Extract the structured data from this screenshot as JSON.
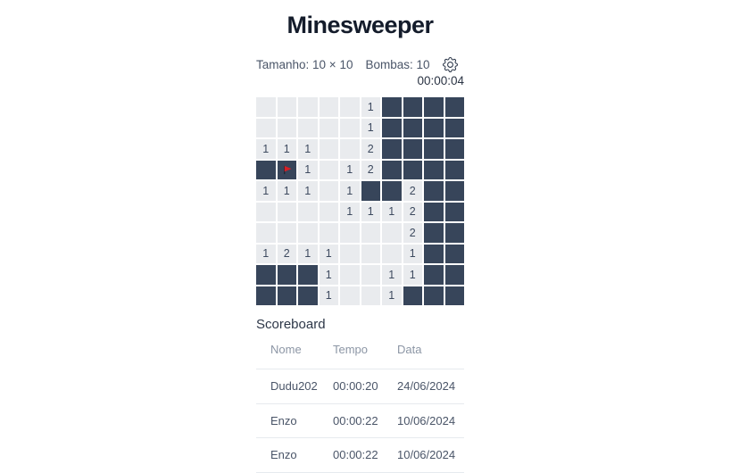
{
  "page": {
    "title": "Minesweeper"
  },
  "settings": {
    "size_label": "Tamanho: 10 × 10",
    "bombs_label": "Bombas: 10",
    "timer": "00:00:04"
  },
  "icons": {
    "settings": "gear-icon",
    "flag": "flag-icon"
  },
  "board": {
    "rows": 10,
    "cols": 10,
    "cell_legend": {
      "#": "hidden",
      "F": "hidden-with-flag",
      "": "revealed-empty"
    },
    "cells": [
      [
        "",
        "",
        "",
        "",
        "",
        "1",
        "#",
        "#",
        "#",
        "#"
      ],
      [
        "",
        "",
        "",
        "",
        "",
        "1",
        "#",
        "#",
        "#",
        "#"
      ],
      [
        "1",
        "1",
        "1",
        "",
        "",
        "2",
        "#",
        "#",
        "#",
        "#"
      ],
      [
        "#",
        "F",
        "1",
        "",
        "1",
        "2",
        "#",
        "#",
        "#",
        "#"
      ],
      [
        "1",
        "1",
        "1",
        "",
        "1",
        "#",
        "#",
        "2",
        "#",
        "#"
      ],
      [
        "",
        "",
        "",
        "",
        "1",
        "1",
        "1",
        "2",
        "#",
        "#"
      ],
      [
        "",
        "",
        "",
        "",
        "",
        "",
        "",
        "2",
        "#",
        "#"
      ],
      [
        "1",
        "2",
        "1",
        "1",
        "",
        "",
        "",
        "1",
        "#",
        "#"
      ],
      [
        "#",
        "#",
        "#",
        "1",
        "",
        "",
        "1",
        "1",
        "#",
        "#"
      ],
      [
        "#",
        "#",
        "#",
        "1",
        "",
        "",
        "1",
        "#",
        "#",
        "#"
      ]
    ]
  },
  "scoreboard": {
    "heading": "Scoreboard",
    "columns": [
      "Nome",
      "Tempo",
      "Data"
    ],
    "rows": [
      [
        "Dudu202",
        "00:00:20",
        "24/06/2024"
      ],
      [
        "Enzo",
        "00:00:22",
        "10/06/2024"
      ],
      [
        "Enzo",
        "00:00:22",
        "10/06/2024"
      ]
    ]
  },
  "colors": {
    "hidden_cell": "#37455a",
    "revealed_cell": "#e9ebee",
    "number_text": "#3d4a5f",
    "flag_red": "#d61f26",
    "title_text": "#141c2b",
    "label_text": "#4a5568",
    "table_header_text": "#8c96a5",
    "separator": "#e6eaee"
  }
}
